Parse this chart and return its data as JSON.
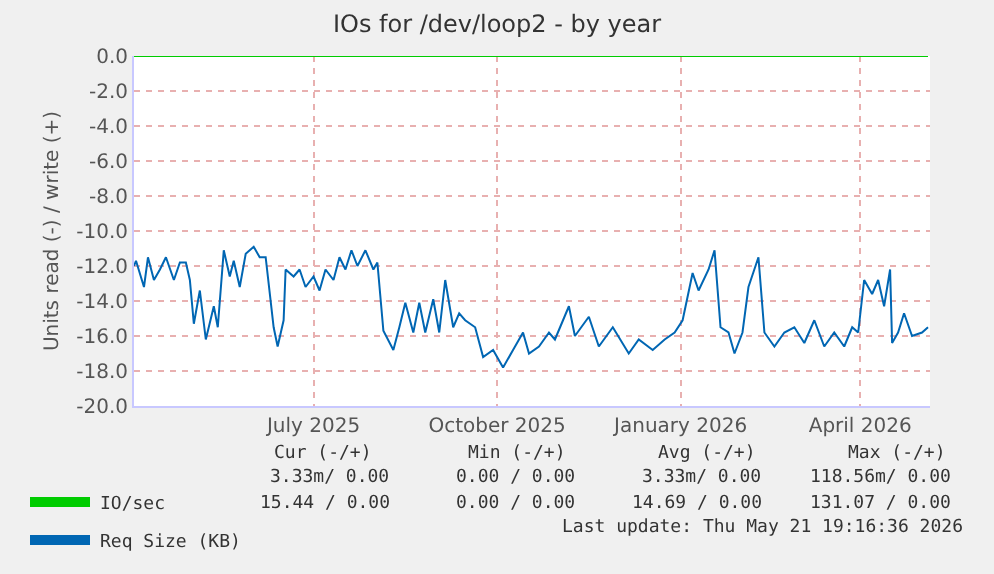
{
  "chart_data": {
    "type": "line",
    "title": "IOs for /dev/loop2 - by year",
    "ylabel": "Units read (-) / write (+)",
    "xlim": [
      "2025-04-02",
      "2026-05-06"
    ],
    "ylim": [
      -20,
      0
    ],
    "xticks": [
      {
        "value": "2025-07-01",
        "label": "July 2025"
      },
      {
        "value": "2025-10-01",
        "label": "October 2025"
      },
      {
        "value": "2026-01-01",
        "label": "January 2026"
      },
      {
        "value": "2026-04-01",
        "label": "April 2026"
      }
    ],
    "yticks": [
      {
        "value": 0,
        "label": "0.0"
      },
      {
        "value": -2,
        "label": "-2.0"
      },
      {
        "value": -4,
        "label": "-4.0"
      },
      {
        "value": -6,
        "label": "-6.0"
      },
      {
        "value": -8,
        "label": "-8.0"
      },
      {
        "value": -10,
        "label": "-10.0"
      },
      {
        "value": -12,
        "label": "-12.0"
      },
      {
        "value": -14,
        "label": "-14.0"
      },
      {
        "value": -16,
        "label": "-16.0"
      },
      {
        "value": -18,
        "label": "-18.0"
      },
      {
        "value": -20,
        "label": "-20.0"
      }
    ],
    "grid": true,
    "legend": "bottom left",
    "marker": "none",
    "line_style": "solid",
    "series": [
      {
        "name": "IO/sec",
        "color": "#00cc00",
        "x": [
          "2025-04-02",
          "2026-05-05"
        ],
        "values": [
          0,
          0
        ]
      },
      {
        "name": "Req Size (KB)",
        "color": "#0066b3",
        "x": [
          "2025-04-02",
          "2025-04-03",
          "2025-04-07",
          "2025-04-09",
          "2025-04-12",
          "2025-04-15",
          "2025-04-18",
          "2025-04-22",
          "2025-04-25",
          "2025-04-28",
          "2025-04-30",
          "2025-05-02",
          "2025-05-05",
          "2025-05-08",
          "2025-05-12",
          "2025-05-14",
          "2025-05-17",
          "2025-05-20",
          "2025-05-22",
          "2025-05-25",
          "2025-05-28",
          "2025-06-01",
          "2025-06-04",
          "2025-06-07",
          "2025-06-11",
          "2025-06-13",
          "2025-06-16",
          "2025-06-17",
          "2025-06-21",
          "2025-06-24",
          "2025-06-27",
          "2025-07-01",
          "2025-07-04",
          "2025-07-07",
          "2025-07-11",
          "2025-07-14",
          "2025-07-17",
          "2025-07-20",
          "2025-07-23",
          "2025-07-27",
          "2025-07-31",
          "2025-08-02",
          "2025-08-05",
          "2025-08-10",
          "2025-08-13",
          "2025-08-16",
          "2025-08-20",
          "2025-08-23",
          "2025-08-26",
          "2025-08-30",
          "2025-09-02",
          "2025-09-05",
          "2025-09-09",
          "2025-09-12",
          "2025-09-15",
          "2025-09-20",
          "2025-09-24",
          "2025-09-29",
          "2025-10-04",
          "2025-10-09",
          "2025-10-14",
          "2025-10-17",
          "2025-10-22",
          "2025-10-27",
          "2025-10-30",
          "2025-11-06",
          "2025-11-09",
          "2025-11-16",
          "2025-11-21",
          "2025-11-28",
          "2025-12-06",
          "2025-12-11",
          "2025-12-18",
          "2025-12-24",
          "2025-12-29",
          "2026-01-02",
          "2026-01-07",
          "2026-01-10",
          "2026-01-15",
          "2026-01-18",
          "2026-01-21",
          "2026-01-25",
          "2026-01-28",
          "2026-02-01",
          "2026-02-04",
          "2026-02-09",
          "2026-02-12",
          "2026-02-17",
          "2026-02-22",
          "2026-02-27",
          "2026-03-04",
          "2026-03-09",
          "2026-03-14",
          "2026-03-19",
          "2026-03-24",
          "2026-03-28",
          "2026-03-31",
          "2026-04-03",
          "2026-04-07",
          "2026-04-10",
          "2026-04-13",
          "2026-04-16",
          "2026-04-17",
          "2026-04-20",
          "2026-04-23",
          "2026-04-27",
          "2026-05-02",
          "2026-05-05"
        ],
        "values": [
          -12.0,
          -11.7,
          -13.2,
          -11.5,
          -12.8,
          -12.2,
          -11.5,
          -12.8,
          -11.8,
          -11.8,
          -12.8,
          -15.3,
          -13.4,
          -16.2,
          -14.3,
          -15.5,
          -11.1,
          -12.6,
          -11.7,
          -13.2,
          -11.3,
          -10.9,
          -11.5,
          -11.5,
          -15.5,
          -16.6,
          -15.1,
          -12.2,
          -12.6,
          -12.2,
          -13.2,
          -12.6,
          -13.4,
          -12.2,
          -12.8,
          -11.5,
          -12.2,
          -11.1,
          -12.0,
          -11.1,
          -12.2,
          -11.8,
          -15.7,
          -16.8,
          -15.5,
          -14.1,
          -15.8,
          -14.1,
          -15.8,
          -13.9,
          -15.8,
          -12.8,
          -15.5,
          -14.7,
          -15.1,
          -15.5,
          -17.2,
          -16.8,
          -17.8,
          -16.8,
          -15.8,
          -17.0,
          -16.6,
          -15.8,
          -16.2,
          -14.3,
          -16.0,
          -14.9,
          -16.6,
          -15.5,
          -17.0,
          -16.2,
          -16.8,
          -16.2,
          -15.8,
          -15.1,
          -12.4,
          -13.4,
          -12.2,
          -11.1,
          -15.5,
          -15.8,
          -17.0,
          -15.8,
          -13.2,
          -11.5,
          -15.8,
          -16.6,
          -15.8,
          -15.5,
          -16.4,
          -15.1,
          -16.6,
          -15.8,
          -16.6,
          -15.5,
          -15.8,
          -12.8,
          -13.6,
          -12.8,
          -14.3,
          -12.2,
          -16.4,
          -15.8,
          -14.7,
          -16.0,
          -15.8,
          -15.5
        ]
      }
    ],
    "annotations": [
      "Cur (-/+)",
      "Min (-/+)",
      "Avg (-/+)",
      "Max (-/+)",
      "3.33m/ 0.00",
      "0.00 / 0.00",
      "3.33m/ 0.00",
      "118.56m/ 0.00",
      "15.44 / 0.00",
      "0.00 / 0.00",
      "14.69 / 0.00",
      "131.07 / 0.00",
      "Last update: Thu May 21 19:16:36 2026"
    ]
  }
}
